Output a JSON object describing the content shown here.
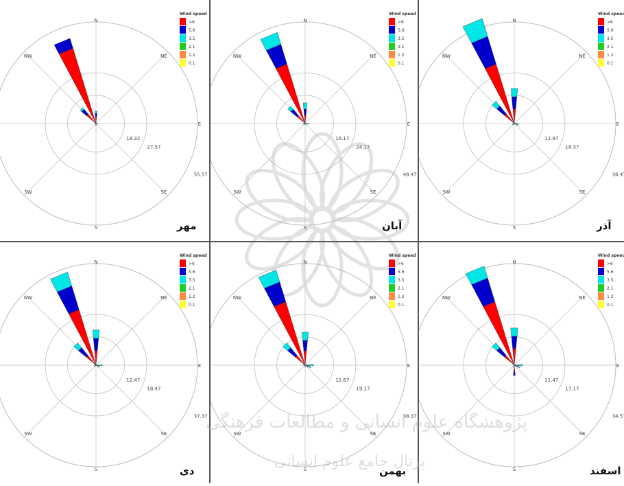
{
  "figure": {
    "watermark_line1": "پژوهشگاه علوم انسانی و مطالعات فرهنگی",
    "watermark_line2": "پرتال جامع علوم انسانی"
  },
  "legend_colors": [
    "#ff0000",
    "#0000cc",
    "#00e6e6",
    "#22cc22",
    "#ff8844",
    "#ffff33"
  ],
  "chart_data": [
    {
      "type": "wind-rose",
      "month": "مهر",
      "legend_title": "Wind speed",
      "speed_classes": [
        ">6",
        "5.6",
        "3.5",
        "2.1",
        "1.2",
        "0.1"
      ],
      "directions": [
        "N",
        "NE",
        "E",
        "SE",
        "S",
        "SW",
        "W",
        "NW"
      ],
      "ring_labels": [
        "18.32",
        "27.57",
        "55.57"
      ],
      "petals": [
        {
          "direction": 337.5,
          "stack": [
            {
              "class": ">6",
              "frequency": 38
            },
            {
              "class": "5.6",
              "frequency": 5
            }
          ]
        },
        {
          "direction": 315,
          "stack": [
            {
              "class": ">6",
              "frequency": 6
            },
            {
              "class": "5.6",
              "frequency": 3
            },
            {
              "class": "3.5",
              "frequency": 1
            }
          ]
        },
        {
          "direction": 0,
          "stack": [
            {
              "class": ">6",
              "frequency": 3
            },
            {
              "class": "5.6",
              "frequency": 2
            },
            {
              "class": "3.5",
              "frequency": 1
            }
          ]
        },
        {
          "direction": 90,
          "stack": [
            {
              "class": "3.5",
              "frequency": 1
            }
          ]
        },
        {
          "direction": 180,
          "stack": [
            {
              "class": "3.5",
              "frequency": 1
            }
          ]
        },
        {
          "direction": 270,
          "stack": [
            {
              "class": "3.5",
              "frequency": 0.5
            }
          ]
        }
      ]
    },
    {
      "type": "wind-rose",
      "month": "آبان",
      "legend_title": "Wind speed",
      "speed_classes": [
        ">6",
        "5.6",
        "3.5",
        "2.1",
        "1.2",
        "0.1"
      ],
      "directions": [
        "N",
        "NE",
        "E",
        "SE",
        "S",
        "SW",
        "W",
        "NW"
      ],
      "ring_labels": [
        "16.17",
        "24.17",
        "48.47"
      ],
      "petals": [
        {
          "direction": 337.5,
          "stack": [
            {
              "class": ">6",
              "frequency": 30
            },
            {
              "class": "5.6",
              "frequency": 10
            },
            {
              "class": "3.5",
              "frequency": 6
            }
          ]
        },
        {
          "direction": 315,
          "stack": [
            {
              "class": ">6",
              "frequency": 5
            },
            {
              "class": "5.6",
              "frequency": 4
            },
            {
              "class": "3.5",
              "frequency": 2
            }
          ]
        },
        {
          "direction": 0,
          "stack": [
            {
              "class": ">6",
              "frequency": 4
            },
            {
              "class": "5.6",
              "frequency": 3
            },
            {
              "class": "3.5",
              "frequency": 3
            }
          ]
        },
        {
          "direction": 90,
          "stack": [
            {
              "class": "3.5",
              "frequency": 1
            },
            {
              "class": "2.1",
              "frequency": 1
            }
          ]
        },
        {
          "direction": 135,
          "stack": [
            {
              "class": "3.5",
              "frequency": 1
            }
          ]
        },
        {
          "direction": 225,
          "stack": [
            {
              "class": "3.5",
              "frequency": 1
            }
          ]
        },
        {
          "direction": 270,
          "stack": [
            {
              "class": "3.5",
              "frequency": 1
            }
          ]
        }
      ]
    },
    {
      "type": "wind-rose",
      "month": "آذر",
      "legend_title": "Wind speed",
      "speed_classes": [
        ">6",
        "5.6",
        "3.5",
        "2.1",
        "1.2",
        "0.1"
      ],
      "directions": [
        "N",
        "NE",
        "E",
        "SE",
        "S",
        "SW",
        "W",
        "NW"
      ],
      "ring_labels": [
        "12.97",
        "18.37",
        "36.47"
      ],
      "petals": [
        {
          "direction": 337.5,
          "stack": [
            {
              "class": ">6",
              "frequency": 30
            },
            {
              "class": "5.6",
              "frequency": 14
            },
            {
              "class": "3.5",
              "frequency": 9
            }
          ]
        },
        {
          "direction": 315,
          "stack": [
            {
              "class": ">6",
              "frequency": 6
            },
            {
              "class": "5.6",
              "frequency": 5
            },
            {
              "class": "3.5",
              "frequency": 3
            }
          ]
        },
        {
          "direction": 0,
          "stack": [
            {
              "class": ">6",
              "frequency": 7
            },
            {
              "class": "5.6",
              "frequency": 6
            },
            {
              "class": "3.5",
              "frequency": 4
            }
          ]
        },
        {
          "direction": 90,
          "stack": [
            {
              "class": "3.5",
              "frequency": 1
            },
            {
              "class": "2.1",
              "frequency": 1
            }
          ]
        },
        {
          "direction": 112.5,
          "stack": [
            {
              "class": "5.6",
              "frequency": 1
            },
            {
              "class": "3.5",
              "frequency": 1
            }
          ]
        },
        {
          "direction": 225,
          "stack": [
            {
              "class": "3.5",
              "frequency": 1
            }
          ]
        },
        {
          "direction": 247.5,
          "stack": [
            {
              "class": "3.5",
              "frequency": 1
            }
          ]
        }
      ]
    },
    {
      "type": "wind-rose",
      "month": "دی",
      "legend_title": "Wind speed",
      "speed_classes": [
        ">6",
        "5.6",
        "3.5",
        "2.1",
        "1.2",
        "0.1"
      ],
      "directions": [
        "N",
        "NE",
        "E",
        "SE",
        "S",
        "SW",
        "W",
        "NW"
      ],
      "ring_labels": [
        "12.47",
        "18.47",
        "37.37"
      ],
      "petals": [
        {
          "direction": 337.5,
          "stack": [
            {
              "class": ">6",
              "frequency": 28
            },
            {
              "class": "5.6",
              "frequency": 12
            },
            {
              "class": "3.5",
              "frequency": 7
            }
          ]
        },
        {
          "direction": 315,
          "stack": [
            {
              "class": ">6",
              "frequency": 6
            },
            {
              "class": "5.6",
              "frequency": 5
            },
            {
              "class": "3.5",
              "frequency": 3
            }
          ]
        },
        {
          "direction": 0,
          "stack": [
            {
              "class": ">6",
              "frequency": 7
            },
            {
              "class": "5.6",
              "frequency": 6
            },
            {
              "class": "3.5",
              "frequency": 4
            }
          ]
        },
        {
          "direction": 90,
          "stack": [
            {
              "class": "5.6",
              "frequency": 1
            },
            {
              "class": "3.5",
              "frequency": 2
            }
          ]
        },
        {
          "direction": 112.5,
          "stack": [
            {
              "class": "5.6",
              "frequency": 1
            },
            {
              "class": "3.5",
              "frequency": 1
            }
          ]
        },
        {
          "direction": 225,
          "stack": [
            {
              "class": "3.5",
              "frequency": 1
            }
          ]
        },
        {
          "direction": 270,
          "stack": [
            {
              "class": "3.5",
              "frequency": 1
            }
          ]
        }
      ]
    },
    {
      "type": "wind-rose",
      "month": "بهمن",
      "legend_title": "Wind speed",
      "speed_classes": [
        ">6",
        "5.6",
        "3.5",
        "2.1",
        "1.2",
        "0.1"
      ],
      "directions": [
        "N",
        "NE",
        "E",
        "SE",
        "S",
        "SW",
        "W",
        "NW"
      ],
      "ring_labels": [
        "12.67",
        "19.17",
        "38.37"
      ],
      "petals": [
        {
          "direction": 337.5,
          "stack": [
            {
              "class": ">6",
              "frequency": 32
            },
            {
              "class": "5.6",
              "frequency": 10
            },
            {
              "class": "3.5",
              "frequency": 6
            }
          ]
        },
        {
          "direction": 315,
          "stack": [
            {
              "class": ">6",
              "frequency": 6
            },
            {
              "class": "5.6",
              "frequency": 5
            },
            {
              "class": "3.5",
              "frequency": 3
            }
          ]
        },
        {
          "direction": 0,
          "stack": [
            {
              "class": ">6",
              "frequency": 7
            },
            {
              "class": "5.6",
              "frequency": 5
            },
            {
              "class": "3.5",
              "frequency": 4
            }
          ]
        },
        {
          "direction": 90,
          "stack": [
            {
              "class": "5.6",
              "frequency": 2
            },
            {
              "class": "3.5",
              "frequency": 2
            }
          ]
        },
        {
          "direction": 112.5,
          "stack": [
            {
              "class": "5.6",
              "frequency": 2
            },
            {
              "class": "3.5",
              "frequency": 1
            }
          ]
        },
        {
          "direction": 180,
          "stack": [
            {
              "class": "3.5",
              "frequency": 1
            }
          ]
        },
        {
          "direction": 270,
          "stack": [
            {
              "class": "3.5",
              "frequency": 1
            }
          ]
        }
      ]
    },
    {
      "type": "wind-rose",
      "month": "اسفند",
      "legend_title": "Wind speed",
      "speed_classes": [
        ">6",
        "5.6",
        "3.5",
        "2.1",
        "1.2",
        "0.1"
      ],
      "directions": [
        "N",
        "NE",
        "E",
        "SE",
        "S",
        "SW",
        "W",
        "NW"
      ],
      "ring_labels": [
        "11.47",
        "17.17",
        "34.57"
      ],
      "petals": [
        {
          "direction": 337.5,
          "stack": [
            {
              "class": ">6",
              "frequency": 32
            },
            {
              "class": "5.6",
              "frequency": 12
            },
            {
              "class": "3.5",
              "frequency": 6
            }
          ]
        },
        {
          "direction": 315,
          "stack": [
            {
              "class": ">6",
              "frequency": 6
            },
            {
              "class": "5.6",
              "frequency": 5
            },
            {
              "class": "3.5",
              "frequency": 3
            }
          ]
        },
        {
          "direction": 0,
          "stack": [
            {
              "class": ">6",
              "frequency": 8
            },
            {
              "class": "5.6",
              "frequency": 6
            },
            {
              "class": "3.5",
              "frequency": 4
            }
          ]
        },
        {
          "direction": 90,
          "stack": [
            {
              "class": "5.6",
              "frequency": 2
            },
            {
              "class": "3.5",
              "frequency": 2
            }
          ]
        },
        {
          "direction": 112.5,
          "stack": [
            {
              "class": "5.6",
              "frequency": 2
            },
            {
              "class": "3.5",
              "frequency": 1
            }
          ]
        },
        {
          "direction": 180,
          "stack": [
            {
              "class": ">6",
              "frequency": 3
            },
            {
              "class": "5.6",
              "frequency": 2
            }
          ]
        },
        {
          "direction": 202.5,
          "stack": [
            {
              "class": "5.6",
              "frequency": 1
            }
          ]
        }
      ]
    }
  ]
}
